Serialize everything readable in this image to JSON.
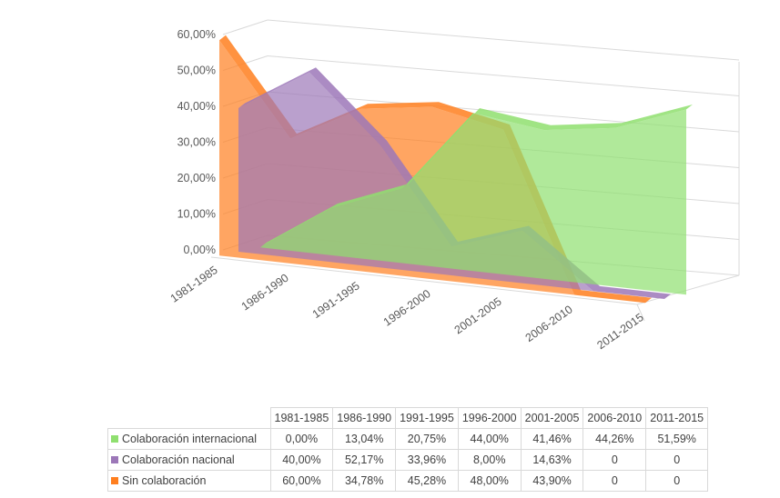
{
  "chart_data": {
    "type": "area",
    "projection": "3d",
    "categories": [
      "1981-1985",
      "1986-1990",
      "1991-1995",
      "1996-2000",
      "2001-2005",
      "2006-2010",
      "2011-2015"
    ],
    "series": [
      {
        "name": "Colaboración internacional",
        "values": [
          0.0,
          13.04,
          20.75,
          44.0,
          41.46,
          44.26,
          51.59
        ],
        "color": "#8fdf6f",
        "labels": [
          "0,00%",
          "13,04%",
          "20,75%",
          "44,00%",
          "41,46%",
          "44,26%",
          "51,59%"
        ]
      },
      {
        "name": "Colaboración nacional",
        "values": [
          40.0,
          52.17,
          33.96,
          8.0,
          14.63,
          0,
          0
        ],
        "color": "#9c77b8",
        "labels": [
          "40,00%",
          "52,17%",
          "33,96%",
          "8,00%",
          "14,63%",
          "0",
          "0"
        ]
      },
      {
        "name": "Sin colaboración",
        "values": [
          60.0,
          34.78,
          45.28,
          48.0,
          43.9,
          0,
          0
        ],
        "color": "#ff7f1f",
        "labels": [
          "60,00%",
          "34,78%",
          "45,28%",
          "48,00%",
          "43,90%",
          "0",
          "0"
        ]
      }
    ],
    "y_ticks": [
      "0,00%",
      "10,00%",
      "20,00%",
      "30,00%",
      "40,00%",
      "50,00%",
      "60,00%"
    ],
    "ylim": [
      0,
      60
    ],
    "grid": true,
    "legend": "data-table"
  }
}
